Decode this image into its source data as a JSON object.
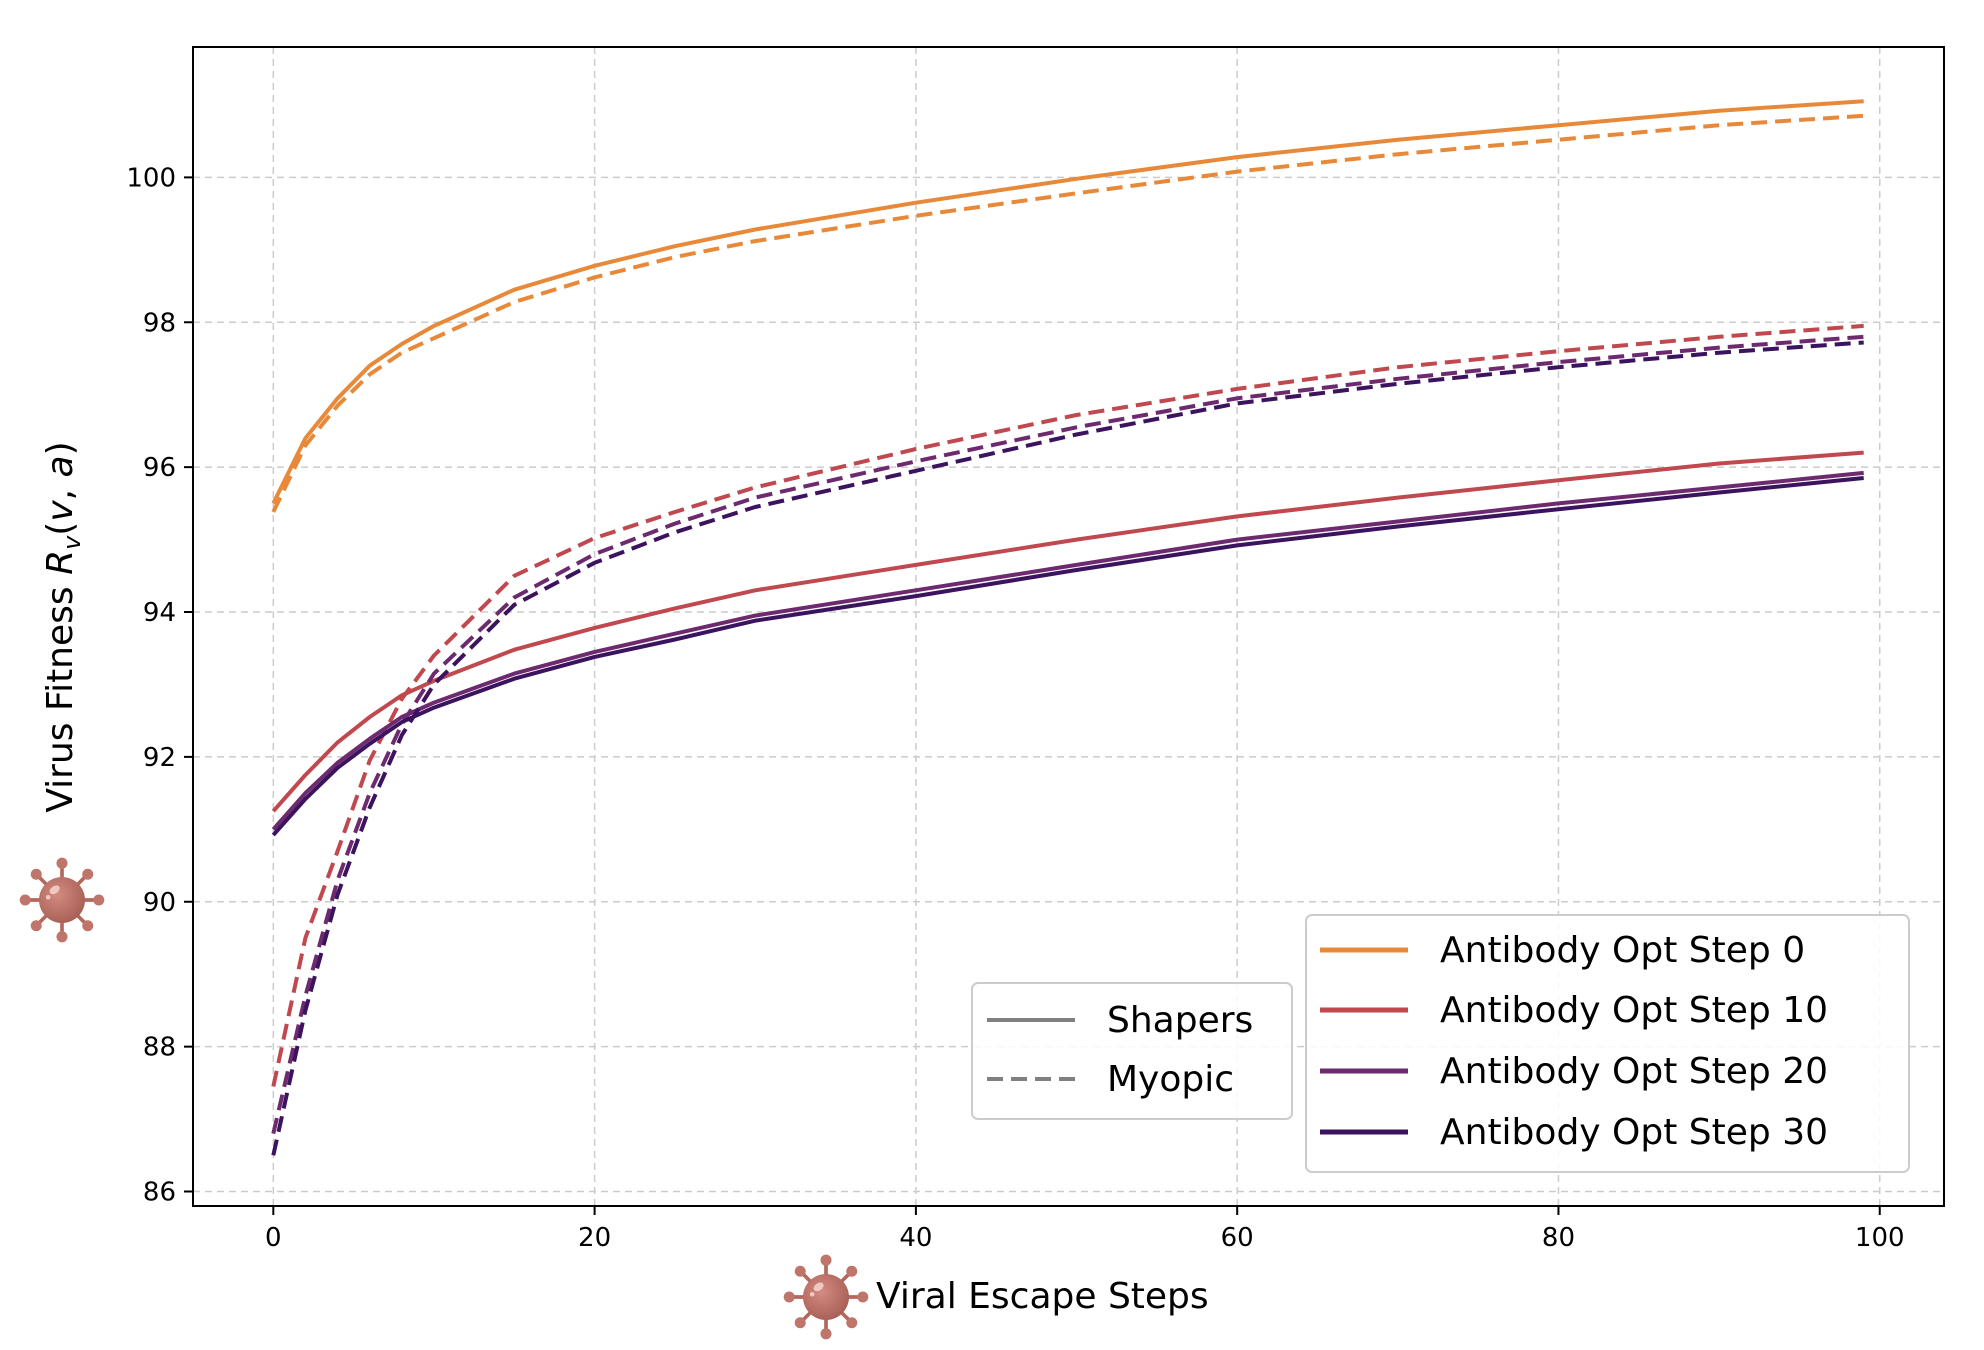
{
  "chart_data": {
    "type": "line",
    "xlabel": "Viral Escape Steps",
    "ylabel": "Virus Fitness R_v(v, a)",
    "xlim": [
      -5,
      104
    ],
    "ylim": [
      85.8,
      101.8
    ],
    "xticks": [
      0,
      20,
      40,
      60,
      80,
      100
    ],
    "yticks": [
      86,
      88,
      90,
      92,
      94,
      96,
      98,
      100
    ],
    "grid": true,
    "colors": {
      "step0": "#e8893a",
      "step10": "#c0484f",
      "step20": "#6e2a6e",
      "step30": "#3b135e",
      "style_legend": "#808080"
    },
    "x": [
      0,
      2,
      4,
      6,
      8,
      10,
      15,
      20,
      25,
      30,
      40,
      50,
      60,
      70,
      80,
      90,
      99
    ],
    "series": [
      {
        "name": "Antibody Opt Step 0",
        "style": "solid",
        "color_key": "step0",
        "values": [
          95.5,
          96.4,
          96.95,
          97.4,
          97.7,
          97.95,
          98.45,
          98.78,
          99.05,
          99.28,
          99.65,
          99.98,
          100.28,
          100.52,
          100.72,
          100.92,
          101.05
        ]
      },
      {
        "name": "Antibody Opt Step 0",
        "style": "dashed",
        "color_key": "step0",
        "values": [
          95.38,
          96.3,
          96.85,
          97.28,
          97.58,
          97.78,
          98.28,
          98.62,
          98.9,
          99.12,
          99.47,
          99.78,
          100.08,
          100.32,
          100.52,
          100.72,
          100.85
        ]
      },
      {
        "name": "Antibody Opt Step 10",
        "style": "solid",
        "color_key": "step10",
        "values": [
          91.25,
          91.75,
          92.2,
          92.55,
          92.85,
          93.05,
          93.48,
          93.78,
          94.05,
          94.3,
          94.65,
          95.0,
          95.32,
          95.58,
          95.82,
          96.05,
          96.2
        ]
      },
      {
        "name": "Antibody Opt Step 10",
        "style": "dashed",
        "color_key": "step10",
        "values": [
          87.45,
          89.5,
          90.7,
          91.95,
          92.8,
          93.4,
          94.5,
          95.02,
          95.38,
          95.72,
          96.25,
          96.72,
          97.08,
          97.38,
          97.6,
          97.8,
          97.95
        ]
      },
      {
        "name": "Antibody Opt Step 20",
        "style": "solid",
        "color_key": "step20",
        "values": [
          91.0,
          91.5,
          91.92,
          92.25,
          92.55,
          92.75,
          93.15,
          93.45,
          93.7,
          93.95,
          94.3,
          94.65,
          95.0,
          95.25,
          95.5,
          95.72,
          95.92
        ]
      },
      {
        "name": "Antibody Opt Step 20",
        "style": "dashed",
        "color_key": "step20",
        "values": [
          86.8,
          88.7,
          90.3,
          91.5,
          92.45,
          93.15,
          94.2,
          94.8,
          95.22,
          95.58,
          96.08,
          96.55,
          96.95,
          97.22,
          97.45,
          97.65,
          97.8
        ]
      },
      {
        "name": "Antibody Opt Step 30",
        "style": "solid",
        "color_key": "step30",
        "values": [
          90.92,
          91.42,
          91.85,
          92.18,
          92.48,
          92.68,
          93.08,
          93.38,
          93.62,
          93.88,
          94.22,
          94.58,
          94.92,
          95.18,
          95.42,
          95.65,
          95.85
        ]
      },
      {
        "name": "Antibody Opt Step 30",
        "style": "dashed",
        "color_key": "step30",
        "values": [
          86.5,
          88.5,
          90.1,
          91.3,
          92.3,
          93.0,
          94.1,
          94.68,
          95.1,
          95.45,
          95.95,
          96.45,
          96.88,
          97.15,
          97.38,
          97.58,
          97.72
        ]
      }
    ],
    "legend_style": {
      "placement": "lower-center",
      "entries": [
        {
          "label": "Shapers",
          "style": "solid"
        },
        {
          "label": "Myopic",
          "style": "dashed"
        }
      ]
    },
    "legend_color": {
      "placement": "lower-right",
      "entries": [
        {
          "label": "Antibody Opt Step 0",
          "color_key": "step0"
        },
        {
          "label": "Antibody Opt Step 10",
          "color_key": "step10"
        },
        {
          "label": "Antibody Opt Step 20",
          "color_key": "step20"
        },
        {
          "label": "Antibody Opt Step 30",
          "color_key": "step30"
        }
      ]
    },
    "icons": [
      "virus-icon",
      "virus-icon"
    ]
  }
}
